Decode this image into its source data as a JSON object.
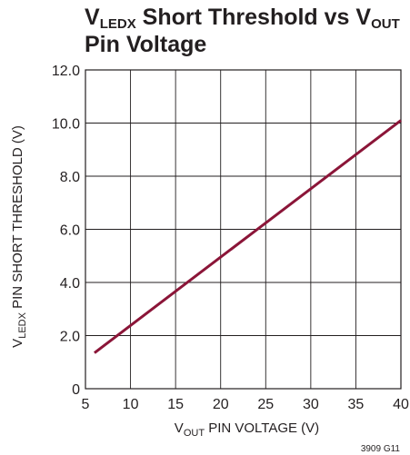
{
  "chart_data": {
    "type": "line",
    "title": {
      "line1": {
        "v": "V",
        "sub": "LEDX",
        "rest": " Short Threshold vs V",
        "sub2": "OUT"
      },
      "line2": "Pin Voltage"
    },
    "xlabel": {
      "v": "V",
      "sub": "OUT",
      "rest": " PIN VOLTAGE (V)"
    },
    "ylabel": {
      "v": "V",
      "sub": "LEDX",
      "rest": " PIN SHORT THRESHOLD (V)"
    },
    "xlim": [
      5,
      40
    ],
    "ylim": [
      0,
      12
    ],
    "xticks": [
      "5",
      "10",
      "15",
      "20",
      "25",
      "30",
      "35",
      "40"
    ],
    "yticks": [
      "0",
      "2.0",
      "4.0",
      "6.0",
      "8.0",
      "10.0",
      "12.0"
    ],
    "grid": true,
    "series": [
      {
        "x": [
          6,
          40
        ],
        "y": [
          1.35,
          10.1
        ]
      }
    ],
    "line_color": "#8b1538",
    "footnote": "3909 G11"
  }
}
